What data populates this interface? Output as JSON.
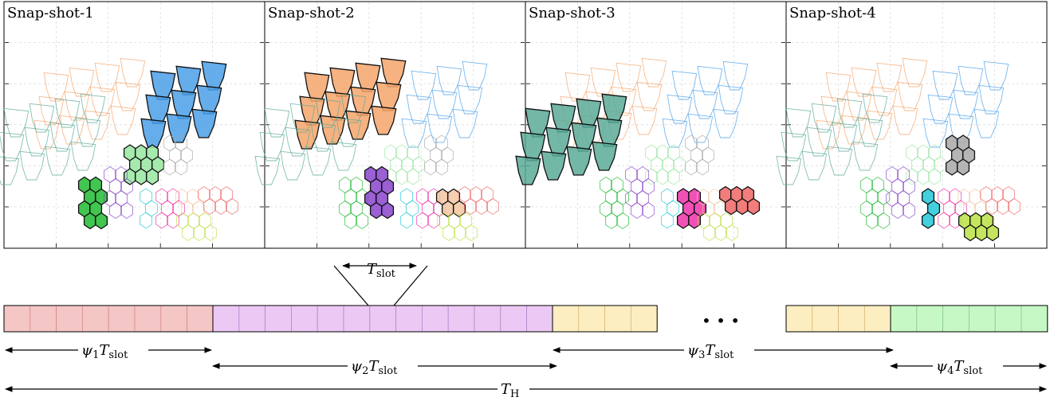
{
  "snapshots": [
    {
      "title": "Snap-shot-1"
    },
    {
      "title": "Snap-shot-2"
    },
    {
      "title": "Snap-shot-3"
    },
    {
      "title": "Snap-shot-4"
    }
  ],
  "colors": {
    "blue": "#4a9fe8",
    "orange": "#f4a46a",
    "teal": "#5aaa98",
    "lightgreen": "#98e6a0",
    "green": "#22bb33",
    "purple": "#8844cc",
    "cyan": "#22c8d8",
    "magenta": "#ee33aa",
    "peach": "#f4c6a2",
    "red": "#ee6666",
    "lime": "#bbe044",
    "gray": "#a8a8a8",
    "pink": "#ee88aa",
    "lavender": "#b070d8"
  },
  "clusters": [
    {
      "id": "blue",
      "color": "blue",
      "kind": "fan",
      "cx": 228,
      "cy": 108,
      "cols": 3,
      "rows": 3,
      "active": [
        0
      ]
    },
    {
      "id": "orange",
      "color": "orange",
      "kind": "fan",
      "cx": 110,
      "cy": 110,
      "cols": 4,
      "rows": 3,
      "active": [
        1
      ]
    },
    {
      "id": "teal",
      "color": "teal",
      "kind": "fan",
      "cx": 60,
      "cy": 155,
      "cols": 4,
      "rows": 3,
      "active": [
        2
      ]
    },
    {
      "id": "lightgreen",
      "color": "lightgreen",
      "kind": "hex",
      "cx": 172,
      "cy": 207,
      "cols": 3,
      "rows": 3,
      "active": [
        0
      ]
    },
    {
      "id": "green",
      "color": "green",
      "kind": "hex",
      "cx": 108,
      "cy": 255,
      "cols": 2,
      "rows": 4,
      "active": [
        0
      ]
    },
    {
      "id": "purple",
      "color": "purple",
      "kind": "hex",
      "cx": 140,
      "cy": 242,
      "cols": 2,
      "rows": 4,
      "active": [
        1
      ]
    },
    {
      "id": "cyan",
      "color": "cyan",
      "kind": "hex",
      "cx": 178,
      "cy": 262,
      "cols": 1,
      "rows": 3,
      "active": [
        3
      ]
    },
    {
      "id": "magenta",
      "color": "magenta",
      "kind": "hex",
      "cx": 205,
      "cy": 262,
      "cols": 2,
      "rows": 3,
      "active": [
        2
      ]
    },
    {
      "id": "peach",
      "color": "peach",
      "kind": "hex",
      "cx": 230,
      "cy": 255,
      "cols": 2,
      "rows": 2,
      "active": [
        1
      ]
    },
    {
      "id": "red",
      "color": "red",
      "kind": "hex",
      "cx": 265,
      "cy": 252,
      "cols": 3,
      "rows": 2,
      "active": [
        2
      ]
    },
    {
      "id": "gray",
      "color": "gray",
      "kind": "hex",
      "cx": 215,
      "cy": 195,
      "cols": 2,
      "rows": 3,
      "active": [
        3
      ]
    },
    {
      "id": "lime",
      "color": "lime",
      "kind": "hex",
      "cx": 238,
      "cy": 285,
      "cols": 3,
      "rows": 2,
      "active": [
        3
      ]
    }
  ],
  "slot_label": "T",
  "slot_sub": "slot",
  "timeline": {
    "segments": [
      {
        "color": "#f4c6c6",
        "stroke": "#d88a8a",
        "slots": 8
      },
      {
        "color": "#ecc8f4",
        "stroke": "#b088c8",
        "slots": 13
      },
      {
        "color": "#fdeec2",
        "stroke": "#d8b878",
        "slots": 4
      },
      {
        "color": "#fdeec2",
        "stroke": "#d8b878",
        "slots": 4
      },
      {
        "color": "#c6f8c6",
        "stroke": "#88c888",
        "slots": 6
      }
    ],
    "ellipsis": "• • •"
  },
  "durations": [
    {
      "coef": "ψ",
      "sub": "1",
      "t": "T",
      "tsub": "slot"
    },
    {
      "coef": "ψ",
      "sub": "2",
      "t": "T",
      "tsub": "slot"
    },
    {
      "coef": "ψ",
      "sub": "3",
      "t": "T",
      "tsub": "slot"
    },
    {
      "coef": "ψ",
      "sub": "4",
      "t": "T",
      "tsub": "slot"
    }
  ],
  "horizon": {
    "t": "T",
    "sub": "H"
  }
}
